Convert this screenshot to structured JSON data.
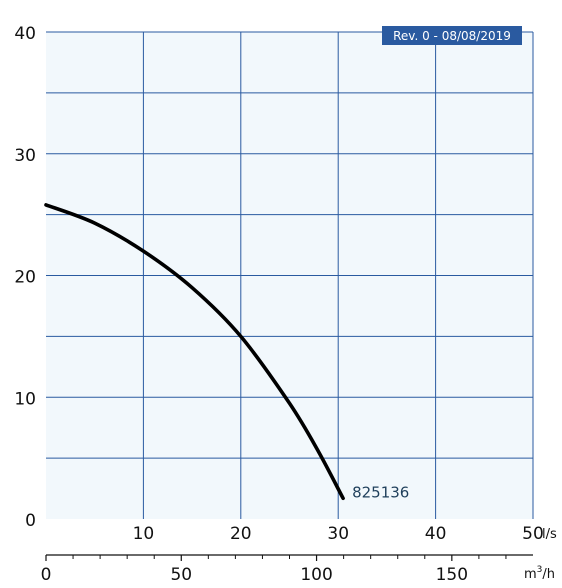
{
  "chart_data": {
    "type": "line",
    "x_axis_primary": {
      "unit": "l/s",
      "ticks": [
        "0",
        "10",
        "20",
        "30",
        "40",
        "50"
      ],
      "range": [
        0,
        50
      ]
    },
    "x_axis_secondary": {
      "unit": "m³/h",
      "unit_base": "m",
      "unit_sup": "3",
      "unit_tail": "/h",
      "ticks": [
        "0",
        "50",
        "100",
        "150"
      ],
      "tick_values": [
        0,
        50,
        100,
        150
      ],
      "range": [
        0,
        180
      ]
    },
    "y_axis": {
      "ticks": [
        "0",
        "10",
        "20",
        "30",
        "40"
      ],
      "range": [
        0,
        40
      ]
    },
    "grid": true,
    "badge": "Rev. 0 - 08/08/2019",
    "series": [
      {
        "name": "825136",
        "color": "#000000",
        "x": [
          0,
          5,
          10,
          15,
          20,
          25,
          28,
          30.5
        ],
        "y": [
          25.8,
          24.3,
          22.0,
          19.0,
          15.0,
          9.5,
          5.5,
          1.7
        ]
      }
    ]
  }
}
